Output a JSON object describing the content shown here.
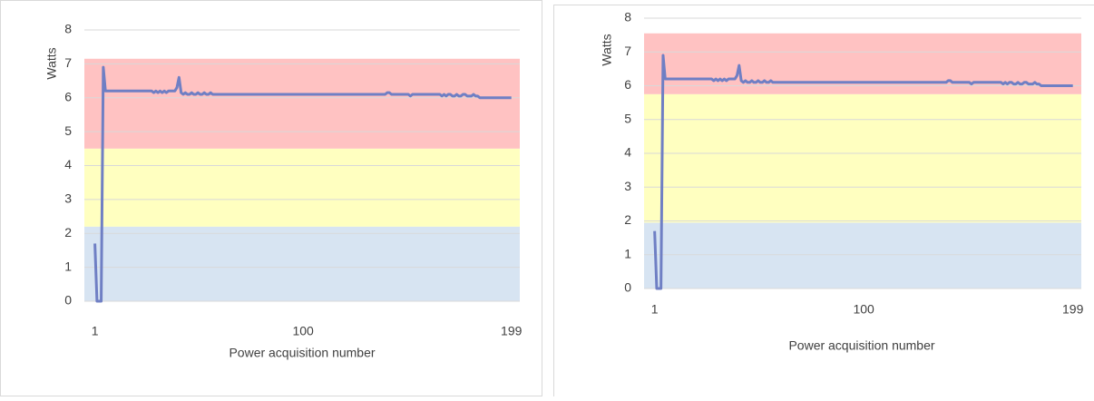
{
  "chart_data": [
    {
      "type": "line",
      "y_label": "Watts",
      "x_label": "Power acquisition number",
      "xlim": [
        -4,
        203
      ],
      "xticks": [
        1,
        100,
        199
      ],
      "ylim": [
        0,
        8
      ],
      "yticks": [
        0,
        1,
        2,
        3,
        4,
        5,
        6,
        7,
        8
      ],
      "grid": true,
      "color": "#6f7fc4",
      "bands": [
        {
          "from": 0,
          "to": 2.2,
          "color": "#d7e4f2"
        },
        {
          "from": 2.2,
          "to": 4.5,
          "color": "#ffffc0"
        },
        {
          "from": 4.5,
          "to": 7.15,
          "color": "#ffc2c2"
        }
      ],
      "x": [
        1,
        2,
        3,
        4,
        5,
        6,
        7,
        8,
        9,
        10,
        11,
        12,
        13,
        14,
        15,
        16,
        17,
        18,
        19,
        20,
        21,
        22,
        23,
        24,
        25,
        26,
        27,
        28,
        29,
        30,
        31,
        32,
        33,
        34,
        35,
        36,
        37,
        38,
        39,
        40,
        41,
        42,
        43,
        44,
        45,
        46,
        47,
        48,
        49,
        50,
        51,
        52,
        53,
        54,
        55,
        56,
        57,
        58,
        59,
        60,
        61,
        62,
        63,
        64,
        65,
        66,
        67,
        68,
        69,
        70,
        71,
        72,
        73,
        74,
        75,
        76,
        77,
        78,
        79,
        80,
        81,
        82,
        83,
        84,
        85,
        86,
        87,
        88,
        89,
        90,
        91,
        92,
        93,
        94,
        95,
        96,
        97,
        98,
        99,
        100,
        101,
        102,
        103,
        104,
        105,
        106,
        107,
        108,
        109,
        110,
        111,
        112,
        113,
        114,
        115,
        116,
        117,
        118,
        119,
        120,
        121,
        122,
        123,
        124,
        125,
        126,
        127,
        128,
        129,
        130,
        131,
        132,
        133,
        134,
        135,
        136,
        137,
        138,
        139,
        140,
        141,
        142,
        143,
        144,
        145,
        146,
        147,
        148,
        149,
        150,
        151,
        152,
        153,
        154,
        155,
        156,
        157,
        158,
        159,
        160,
        161,
        162,
        163,
        164,
        165,
        166,
        167,
        168,
        169,
        170,
        171,
        172,
        173,
        174,
        175,
        176,
        177,
        178,
        179,
        180,
        181,
        182,
        183,
        184,
        185,
        186,
        187,
        188,
        189,
        190,
        191,
        192,
        193,
        194,
        195,
        196,
        197,
        198,
        199
      ],
      "values": [
        1.7,
        0,
        0,
        0,
        6.9,
        6.2,
        6.2,
        6.2,
        6.2,
        6.2,
        6.2,
        6.2,
        6.2,
        6.2,
        6.2,
        6.2,
        6.2,
        6.2,
        6.2,
        6.2,
        6.2,
        6.2,
        6.2,
        6.2,
        6.2,
        6.2,
        6.2,
        6.2,
        6.15,
        6.2,
        6.15,
        6.2,
        6.15,
        6.2,
        6.15,
        6.2,
        6.2,
        6.2,
        6.2,
        6.3,
        6.6,
        6.15,
        6.1,
        6.15,
        6.1,
        6.1,
        6.15,
        6.1,
        6.1,
        6.15,
        6.1,
        6.1,
        6.15,
        6.1,
        6.1,
        6.15,
        6.1,
        6.1,
        6.1,
        6.1,
        6.1,
        6.1,
        6.1,
        6.1,
        6.1,
        6.1,
        6.1,
        6.1,
        6.1,
        6.1,
        6.1,
        6.1,
        6.1,
        6.1,
        6.1,
        6.1,
        6.1,
        6.1,
        6.1,
        6.1,
        6.1,
        6.1,
        6.1,
        6.1,
        6.1,
        6.1,
        6.1,
        6.1,
        6.1,
        6.1,
        6.1,
        6.1,
        6.1,
        6.1,
        6.1,
        6.1,
        6.1,
        6.1,
        6.1,
        6.1,
        6.1,
        6.1,
        6.1,
        6.1,
        6.1,
        6.1,
        6.1,
        6.1,
        6.1,
        6.1,
        6.1,
        6.1,
        6.1,
        6.1,
        6.1,
        6.1,
        6.1,
        6.1,
        6.1,
        6.1,
        6.1,
        6.1,
        6.1,
        6.1,
        6.1,
        6.1,
        6.1,
        6.1,
        6.1,
        6.1,
        6.1,
        6.1,
        6.1,
        6.1,
        6.1,
        6.1,
        6.1,
        6.1,
        6.1,
        6.15,
        6.15,
        6.1,
        6.1,
        6.1,
        6.1,
        6.1,
        6.1,
        6.1,
        6.1,
        6.1,
        6.05,
        6.1,
        6.1,
        6.1,
        6.1,
        6.1,
        6.1,
        6.1,
        6.1,
        6.1,
        6.1,
        6.1,
        6.1,
        6.1,
        6.1,
        6.05,
        6.1,
        6.05,
        6.1,
        6.1,
        6.05,
        6.05,
        6.1,
        6.05,
        6.05,
        6.1,
        6.1,
        6.05,
        6.05,
        6.05,
        6.1,
        6.05,
        6.05,
        6,
        6,
        6,
        6,
        6,
        6,
        6,
        6,
        6,
        6,
        6,
        6,
        6,
        6,
        6,
        6
      ]
    },
    {
      "type": "line",
      "y_label": "Watts",
      "x_label": "Power acquisition number",
      "xlim": [
        -4,
        203
      ],
      "xticks": [
        1,
        100,
        199
      ],
      "ylim": [
        0,
        8
      ],
      "yticks": [
        0,
        1,
        2,
        3,
        4,
        5,
        6,
        7,
        8
      ],
      "grid": true,
      "color": "#6f7fc4",
      "bands": [
        {
          "from": 0,
          "to": 1.95,
          "color": "#d7e4f2"
        },
        {
          "from": 1.95,
          "to": 5.75,
          "color": "#ffffc0"
        },
        {
          "from": 5.75,
          "to": 7.55,
          "color": "#ffc2c2"
        }
      ],
      "x": [
        1,
        2,
        3,
        4,
        5,
        6,
        7,
        8,
        9,
        10,
        11,
        12,
        13,
        14,
        15,
        16,
        17,
        18,
        19,
        20,
        21,
        22,
        23,
        24,
        25,
        26,
        27,
        28,
        29,
        30,
        31,
        32,
        33,
        34,
        35,
        36,
        37,
        38,
        39,
        40,
        41,
        42,
        43,
        44,
        45,
        46,
        47,
        48,
        49,
        50,
        51,
        52,
        53,
        54,
        55,
        56,
        57,
        58,
        59,
        60,
        61,
        62,
        63,
        64,
        65,
        66,
        67,
        68,
        69,
        70,
        71,
        72,
        73,
        74,
        75,
        76,
        77,
        78,
        79,
        80,
        81,
        82,
        83,
        84,
        85,
        86,
        87,
        88,
        89,
        90,
        91,
        92,
        93,
        94,
        95,
        96,
        97,
        98,
        99,
        100,
        101,
        102,
        103,
        104,
        105,
        106,
        107,
        108,
        109,
        110,
        111,
        112,
        113,
        114,
        115,
        116,
        117,
        118,
        119,
        120,
        121,
        122,
        123,
        124,
        125,
        126,
        127,
        128,
        129,
        130,
        131,
        132,
        133,
        134,
        135,
        136,
        137,
        138,
        139,
        140,
        141,
        142,
        143,
        144,
        145,
        146,
        147,
        148,
        149,
        150,
        151,
        152,
        153,
        154,
        155,
        156,
        157,
        158,
        159,
        160,
        161,
        162,
        163,
        164,
        165,
        166,
        167,
        168,
        169,
        170,
        171,
        172,
        173,
        174,
        175,
        176,
        177,
        178,
        179,
        180,
        181,
        182,
        183,
        184,
        185,
        186,
        187,
        188,
        189,
        190,
        191,
        192,
        193,
        194,
        195,
        196,
        197,
        198,
        199
      ],
      "values": [
        1.7,
        0,
        0,
        0,
        6.9,
        6.2,
        6.2,
        6.2,
        6.2,
        6.2,
        6.2,
        6.2,
        6.2,
        6.2,
        6.2,
        6.2,
        6.2,
        6.2,
        6.2,
        6.2,
        6.2,
        6.2,
        6.2,
        6.2,
        6.2,
        6.2,
        6.2,
        6.2,
        6.15,
        6.2,
        6.15,
        6.2,
        6.15,
        6.2,
        6.15,
        6.2,
        6.2,
        6.2,
        6.2,
        6.3,
        6.6,
        6.15,
        6.1,
        6.15,
        6.1,
        6.1,
        6.15,
        6.1,
        6.1,
        6.15,
        6.1,
        6.1,
        6.15,
        6.1,
        6.1,
        6.15,
        6.1,
        6.1,
        6.1,
        6.1,
        6.1,
        6.1,
        6.1,
        6.1,
        6.1,
        6.1,
        6.1,
        6.1,
        6.1,
        6.1,
        6.1,
        6.1,
        6.1,
        6.1,
        6.1,
        6.1,
        6.1,
        6.1,
        6.1,
        6.1,
        6.1,
        6.1,
        6.1,
        6.1,
        6.1,
        6.1,
        6.1,
        6.1,
        6.1,
        6.1,
        6.1,
        6.1,
        6.1,
        6.1,
        6.1,
        6.1,
        6.1,
        6.1,
        6.1,
        6.1,
        6.1,
        6.1,
        6.1,
        6.1,
        6.1,
        6.1,
        6.1,
        6.1,
        6.1,
        6.1,
        6.1,
        6.1,
        6.1,
        6.1,
        6.1,
        6.1,
        6.1,
        6.1,
        6.1,
        6.1,
        6.1,
        6.1,
        6.1,
        6.1,
        6.1,
        6.1,
        6.1,
        6.1,
        6.1,
        6.1,
        6.1,
        6.1,
        6.1,
        6.1,
        6.1,
        6.1,
        6.1,
        6.1,
        6.1,
        6.15,
        6.15,
        6.1,
        6.1,
        6.1,
        6.1,
        6.1,
        6.1,
        6.1,
        6.1,
        6.1,
        6.05,
        6.1,
        6.1,
        6.1,
        6.1,
        6.1,
        6.1,
        6.1,
        6.1,
        6.1,
        6.1,
        6.1,
        6.1,
        6.1,
        6.1,
        6.05,
        6.1,
        6.05,
        6.1,
        6.1,
        6.05,
        6.05,
        6.1,
        6.05,
        6.05,
        6.1,
        6.1,
        6.05,
        6.05,
        6.05,
        6.1,
        6.05,
        6.05,
        6,
        6,
        6,
        6,
        6,
        6,
        6,
        6,
        6,
        6,
        6,
        6,
        6,
        6,
        6,
        6
      ]
    }
  ]
}
